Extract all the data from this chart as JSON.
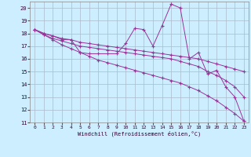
{
  "xlabel": "Windchill (Refroidissement éolien,°C)",
  "bg_color": "#cceeff",
  "line_color": "#993399",
  "grid_color": "#aabbcc",
  "xlim": [
    -0.5,
    23.5
  ],
  "ylim": [
    11,
    20.5
  ],
  "yticks": [
    11,
    12,
    13,
    14,
    15,
    16,
    17,
    18,
    19,
    20
  ],
  "xticks": [
    0,
    1,
    2,
    3,
    4,
    5,
    6,
    7,
    8,
    9,
    10,
    11,
    12,
    13,
    14,
    15,
    16,
    17,
    18,
    19,
    20,
    21,
    22,
    23
  ],
  "series": [
    {
      "x": [
        0,
        1,
        2,
        3,
        4,
        5,
        6,
        7,
        8,
        9,
        10,
        11,
        12,
        13,
        14,
        15,
        16,
        17,
        18,
        19,
        20,
        21,
        22,
        23
      ],
      "y": [
        18.3,
        18.0,
        17.8,
        17.5,
        17.5,
        16.5,
        16.4,
        16.4,
        16.4,
        16.4,
        17.2,
        18.4,
        18.3,
        17.0,
        18.6,
        20.3,
        20.0,
        16.0,
        16.5,
        14.8,
        15.1,
        13.8,
        13.0,
        11.1
      ]
    },
    {
      "x": [
        0,
        1,
        2,
        3,
        4,
        5,
        6,
        7,
        8,
        9,
        10,
        11,
        12,
        13,
        14,
        15,
        16,
        17,
        18,
        19,
        20,
        21,
        22,
        23
      ],
      "y": [
        18.3,
        18.0,
        17.8,
        17.6,
        17.5,
        17.3,
        17.2,
        17.1,
        17.0,
        16.9,
        16.8,
        16.7,
        16.6,
        16.5,
        16.4,
        16.3,
        16.2,
        16.1,
        16.0,
        15.8,
        15.6,
        15.4,
        15.2,
        15.0
      ]
    },
    {
      "x": [
        0,
        1,
        2,
        3,
        4,
        5,
        6,
        7,
        8,
        9,
        10,
        11,
        12,
        13,
        14,
        15,
        16,
        17,
        18,
        19,
        20,
        21,
        22,
        23
      ],
      "y": [
        18.3,
        17.9,
        17.6,
        17.4,
        17.2,
        17.0,
        16.9,
        16.8,
        16.7,
        16.6,
        16.5,
        16.4,
        16.3,
        16.2,
        16.1,
        16.0,
        15.8,
        15.6,
        15.4,
        15.0,
        14.7,
        14.3,
        13.8,
        13.0
      ]
    },
    {
      "x": [
        0,
        1,
        2,
        3,
        4,
        5,
        6,
        7,
        8,
        9,
        10,
        11,
        12,
        13,
        14,
        15,
        16,
        17,
        18,
        19,
        20,
        21,
        22,
        23
      ],
      "y": [
        18.3,
        17.9,
        17.5,
        17.1,
        16.8,
        16.5,
        16.2,
        15.9,
        15.7,
        15.5,
        15.3,
        15.1,
        14.9,
        14.7,
        14.5,
        14.3,
        14.1,
        13.8,
        13.5,
        13.1,
        12.7,
        12.2,
        11.7,
        11.1
      ]
    }
  ]
}
